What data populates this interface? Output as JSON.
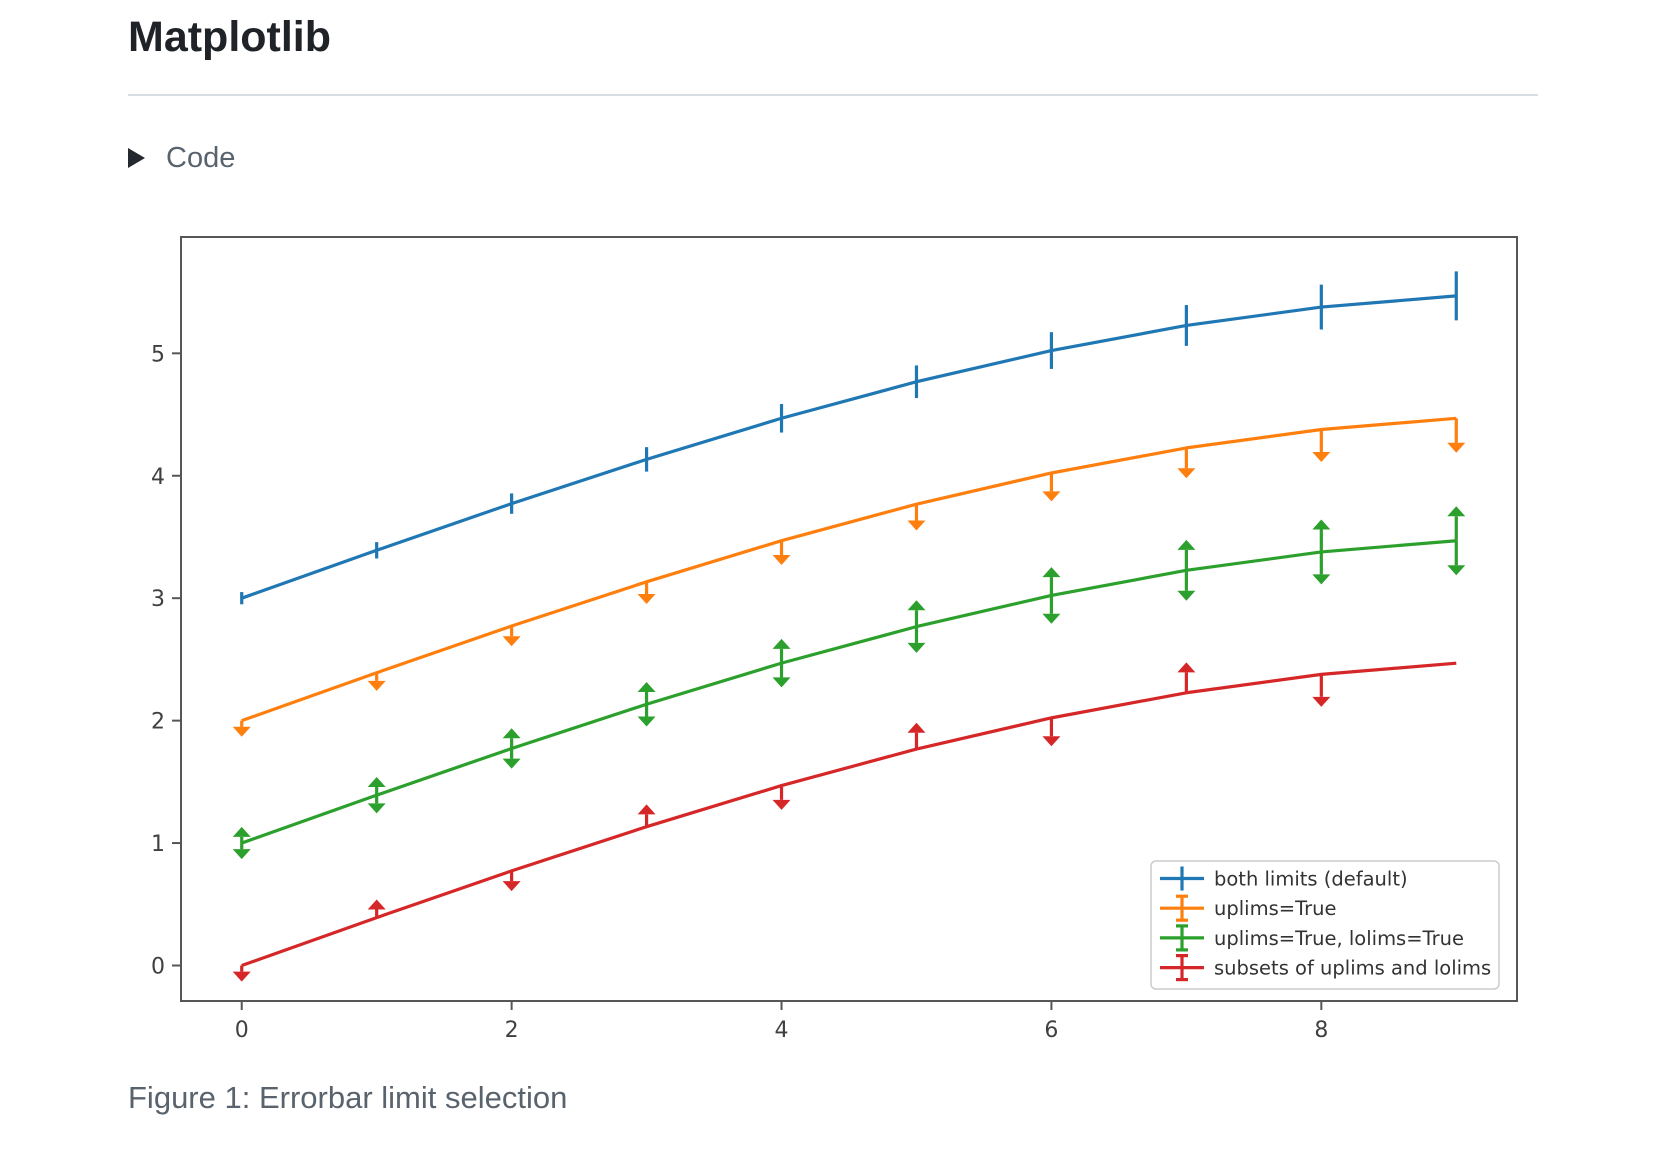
{
  "page": {
    "title": "Matplotlib",
    "code_toggle": {
      "label": "Code",
      "state": "collapsed"
    },
    "caption": "Figure 1: Errorbar limit selection"
  },
  "colors": {
    "page_text": "#1f2328",
    "muted_text": "#59636e",
    "divider": "#d8dee4",
    "spine": "#565656",
    "tick_label": "#404040",
    "legend_border": "#cccccc",
    "legend_text": "#333333",
    "figure_background": "#ffffff"
  },
  "chart_data": {
    "type": "line",
    "subtype": "errorbar-with-limits",
    "title": "",
    "xlabel": "",
    "ylabel": "",
    "grid": false,
    "legend_position": "lower right",
    "x": [
      0,
      1,
      2,
      3,
      4,
      5,
      6,
      7,
      8,
      9
    ],
    "xticks": [
      0,
      2,
      4,
      6,
      8
    ],
    "yticks": [
      0,
      1,
      2,
      3,
      4,
      5
    ],
    "xlim": [
      -0.45,
      9.45
    ],
    "ylim": [
      -0.29,
      5.95
    ],
    "yerr": [
      0.05,
      0.0667,
      0.0833,
      0.1,
      0.1167,
      0.1333,
      0.15,
      0.1667,
      0.1833,
      0.2
    ],
    "series": [
      {
        "name": "both limits (default)",
        "color": "#1f77b4",
        "limits": "both",
        "values": [
          3.0,
          3.3911,
          3.7725,
          4.1338,
          4.4695,
          4.7678,
          5.0225,
          5.2275,
          5.3776,
          5.4692
        ]
      },
      {
        "name": "uplims=True",
        "color": "#ff7f0e",
        "limits": "uplims",
        "values": [
          2.0,
          2.3911,
          2.7725,
          3.1338,
          3.4695,
          3.7678,
          4.0225,
          4.2275,
          4.3776,
          4.4692
        ]
      },
      {
        "name": "uplims=True, lolims=True",
        "color": "#2ca02c",
        "limits": "uplims+lolims",
        "values": [
          1.0,
          1.3911,
          1.7725,
          2.1338,
          2.4695,
          2.7678,
          3.0225,
          3.2275,
          3.3776,
          3.4692
        ]
      },
      {
        "name": "subsets of uplims and lolims",
        "color": "#d62728",
        "limits": "subsets",
        "uplims_at": [
          0,
          2,
          4,
          6,
          8
        ],
        "lolims_at": [
          1,
          3,
          5,
          7
        ],
        "values": [
          0.0,
          0.3911,
          0.7725,
          1.1338,
          1.4695,
          1.7678,
          2.0225,
          2.2275,
          2.3776,
          2.4692
        ]
      }
    ]
  }
}
